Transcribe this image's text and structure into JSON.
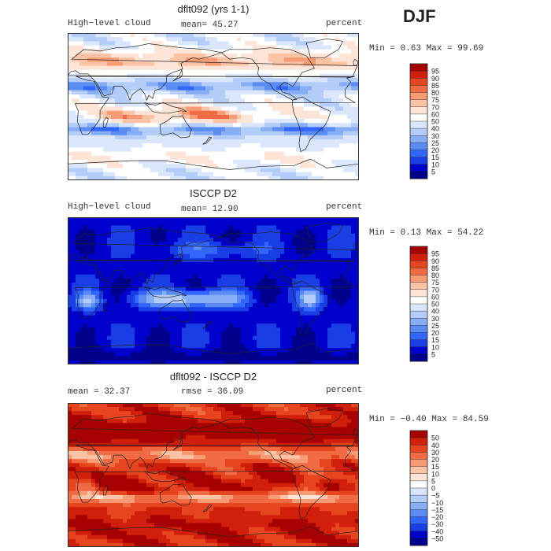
{
  "season": "DJF",
  "palettes": {
    "pos": [
      "#00008b",
      "#0000cd",
      "#1a3ee6",
      "#3366ff",
      "#5a8cf2",
      "#87aef5",
      "#b3cdf8",
      "#d9e6fc",
      "#ffffff",
      "#fde4d6",
      "#fbc3a6",
      "#f79b74",
      "#f06b43",
      "#e64520",
      "#d0200c",
      "#a60000"
    ],
    "diff": [
      "#00008b",
      "#0000cd",
      "#1a3ee6",
      "#3366ff",
      "#5a8cf2",
      "#87aef5",
      "#b3cdf8",
      "#d9e6fc",
      "#ffffff",
      "#fde4d6",
      "#fbc3a6",
      "#f79b74",
      "#f06b43",
      "#e64520",
      "#d0200c",
      "#a60000"
    ]
  },
  "chart_data": [
    {
      "type": "heatmap",
      "title": "dflt092 (yrs 1-1)",
      "left_label": "High−level cloud",
      "center_label": "mean=  45.27",
      "units": "percent",
      "stats": "Min =   0.63 Max =  99.69",
      "mean": 45.27,
      "min": 0.63,
      "max": 99.69,
      "colorbar_levels": [
        "95",
        "90",
        "85",
        "80",
        "75",
        "70",
        "60",
        "50",
        "40",
        "30",
        "25",
        "20",
        "15",
        "10",
        "5"
      ]
    },
    {
      "type": "heatmap",
      "title": "ISCCP D2",
      "left_label": "High−level cloud",
      "center_label": "mean=  12.90",
      "units": "percent",
      "stats": "Min =   0.13 Max =  54.22",
      "mean": 12.9,
      "min": 0.13,
      "max": 54.22,
      "colorbar_levels": [
        "95",
        "90",
        "85",
        "80",
        "75",
        "70",
        "60",
        "50",
        "40",
        "30",
        "25",
        "20",
        "15",
        "10",
        "5"
      ]
    },
    {
      "type": "heatmap",
      "title": "dflt092 - ISCCP D2",
      "left_label": "mean =   32.37",
      "center_label": "rmse =   36.09",
      "units": "percent",
      "stats": "Min =  −0.40 Max =  84.59",
      "mean": 32.37,
      "rmse": 36.09,
      "min": -0.4,
      "max": 84.59,
      "colorbar_levels": [
        "50",
        "40",
        "30",
        "20",
        "15",
        "10",
        "5",
        "0",
        "−5",
        "−10",
        "−15",
        "−20",
        "−30",
        "−40",
        "−50"
      ]
    }
  ]
}
